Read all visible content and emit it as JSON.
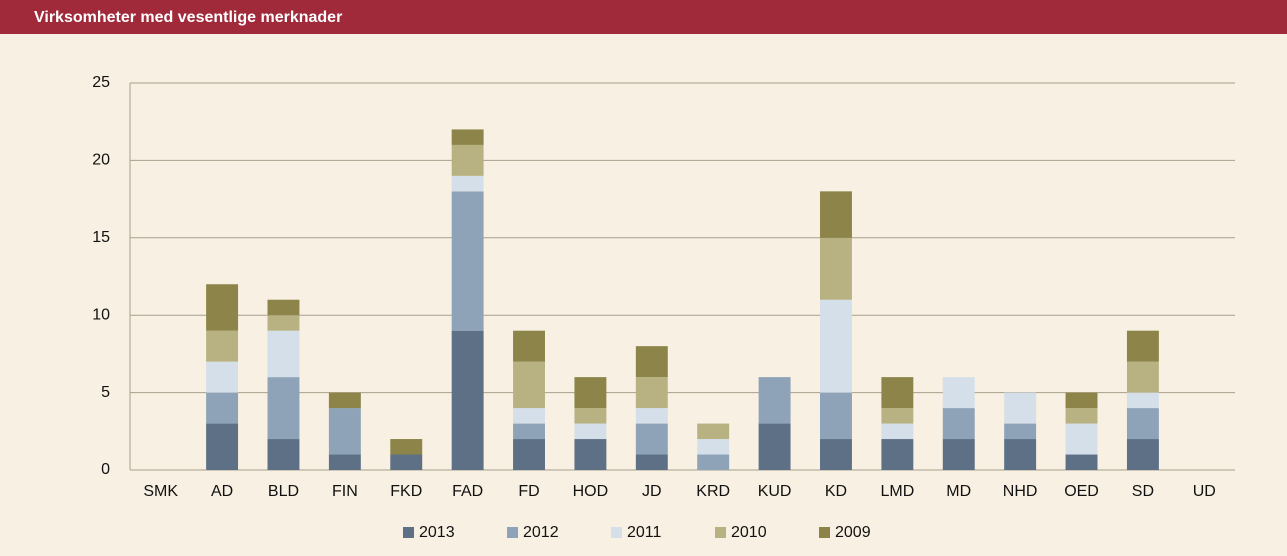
{
  "chart_data": {
    "type": "stacked_bar",
    "title": "Virksomheter med vesentlige merknader",
    "categories": [
      "SMK",
      "AD",
      "BLD",
      "FIN",
      "FKD",
      "FAD",
      "FD",
      "HOD",
      "JD",
      "KRD",
      "KUD",
      "KD",
      "LMD",
      "MD",
      "NHD",
      "OED",
      "SD",
      "UD"
    ],
    "series": [
      {
        "name": "2013",
        "color": "#5e7085",
        "values": [
          0,
          3,
          2,
          1,
          1,
          9,
          2,
          2,
          1,
          0,
          3,
          2,
          2,
          2,
          2,
          1,
          2,
          0
        ]
      },
      {
        "name": "2012",
        "color": "#8ea3b8",
        "values": [
          0,
          2,
          4,
          3,
          0,
          9,
          1,
          0,
          2,
          1,
          3,
          3,
          0,
          2,
          1,
          0,
          2,
          0
        ]
      },
      {
        "name": "2011",
        "color": "#d5dfea",
        "values": [
          0,
          2,
          3,
          0,
          0,
          1,
          1,
          1,
          1,
          1,
          0,
          6,
          1,
          2,
          2,
          2,
          1,
          0
        ]
      },
      {
        "name": "2010",
        "color": "#b8b283",
        "values": [
          0,
          2,
          1,
          0,
          0,
          2,
          3,
          1,
          2,
          1,
          0,
          4,
          1,
          0,
          0,
          1,
          2,
          0
        ]
      },
      {
        "name": "2009",
        "color": "#8c8448",
        "values": [
          0,
          3,
          1,
          1,
          1,
          1,
          2,
          2,
          2,
          0,
          0,
          3,
          2,
          0,
          0,
          1,
          2,
          0
        ]
      }
    ],
    "ylim": [
      0,
      25
    ],
    "yticks": [
      0,
      5,
      10,
      15,
      20,
      25
    ],
    "grid": true,
    "legend": "bottom"
  }
}
